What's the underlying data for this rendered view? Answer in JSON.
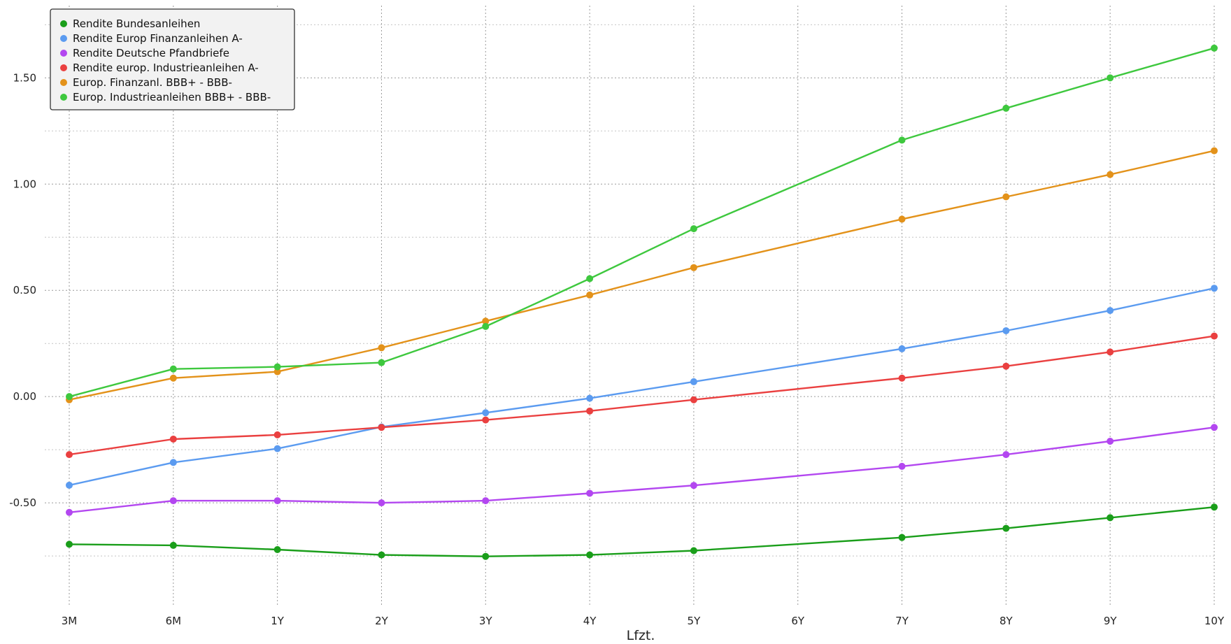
{
  "chart_data": {
    "type": "line",
    "title": "",
    "xlabel": "Lfzt.",
    "ylabel": "",
    "categories": [
      "3M",
      "6M",
      "1Y",
      "2Y",
      "3Y",
      "4Y",
      "5Y",
      "6Y",
      "7Y",
      "8Y",
      "9Y",
      "10Y"
    ],
    "y_ticks": [
      -0.5,
      0.0,
      0.5,
      1.0,
      1.5
    ],
    "y_tick_labels": [
      "-0.50",
      "0.00",
      "0.50",
      "1.00",
      "1.50"
    ],
    "ylim": [
      -0.98,
      1.84
    ],
    "grid": true,
    "legend_position": "top-left",
    "series": [
      {
        "name": "Rendite Bundesanleihen",
        "color": "#1a9e1a",
        "values": [
          -0.695,
          -0.7,
          -0.72,
          -0.745,
          -0.752,
          -0.745,
          -0.725,
          null,
          -0.663,
          -0.62,
          -0.57,
          -0.52
        ]
      },
      {
        "name": "Rendite Europ Finanzanleihen A-",
        "color": "#5b9bf0",
        "values": [
          -0.417,
          -0.31,
          -0.245,
          -0.143,
          -0.076,
          -0.008,
          0.07,
          null,
          0.225,
          0.31,
          0.405,
          0.51
        ]
      },
      {
        "name": "Rendite Deutsche Pfandbriefe",
        "color": "#b347f0",
        "values": [
          -0.545,
          -0.49,
          -0.49,
          -0.5,
          -0.49,
          -0.455,
          -0.418,
          null,
          -0.328,
          -0.273,
          -0.21,
          -0.145
        ]
      },
      {
        "name": "Rendite europ. Industrieanleihen A-",
        "color": "#ea4040",
        "values": [
          -0.273,
          -0.2,
          -0.18,
          -0.145,
          -0.11,
          -0.068,
          -0.015,
          null,
          0.087,
          0.143,
          0.21,
          0.285
        ]
      },
      {
        "name": "Europ. Finanzanl. BBB+ - BBB-",
        "color": "#e3921a",
        "values": [
          -0.015,
          0.087,
          0.117,
          0.23,
          0.355,
          0.478,
          0.607,
          null,
          0.835,
          0.94,
          1.045,
          1.157
        ]
      },
      {
        "name": "Europ. Industrieanleihen BBB+ - BBB-",
        "color": "#3ec83e",
        "values": [
          0.0,
          0.13,
          0.14,
          0.16,
          0.33,
          0.555,
          0.79,
          null,
          1.207,
          1.357,
          1.5,
          1.64
        ]
      }
    ]
  }
}
